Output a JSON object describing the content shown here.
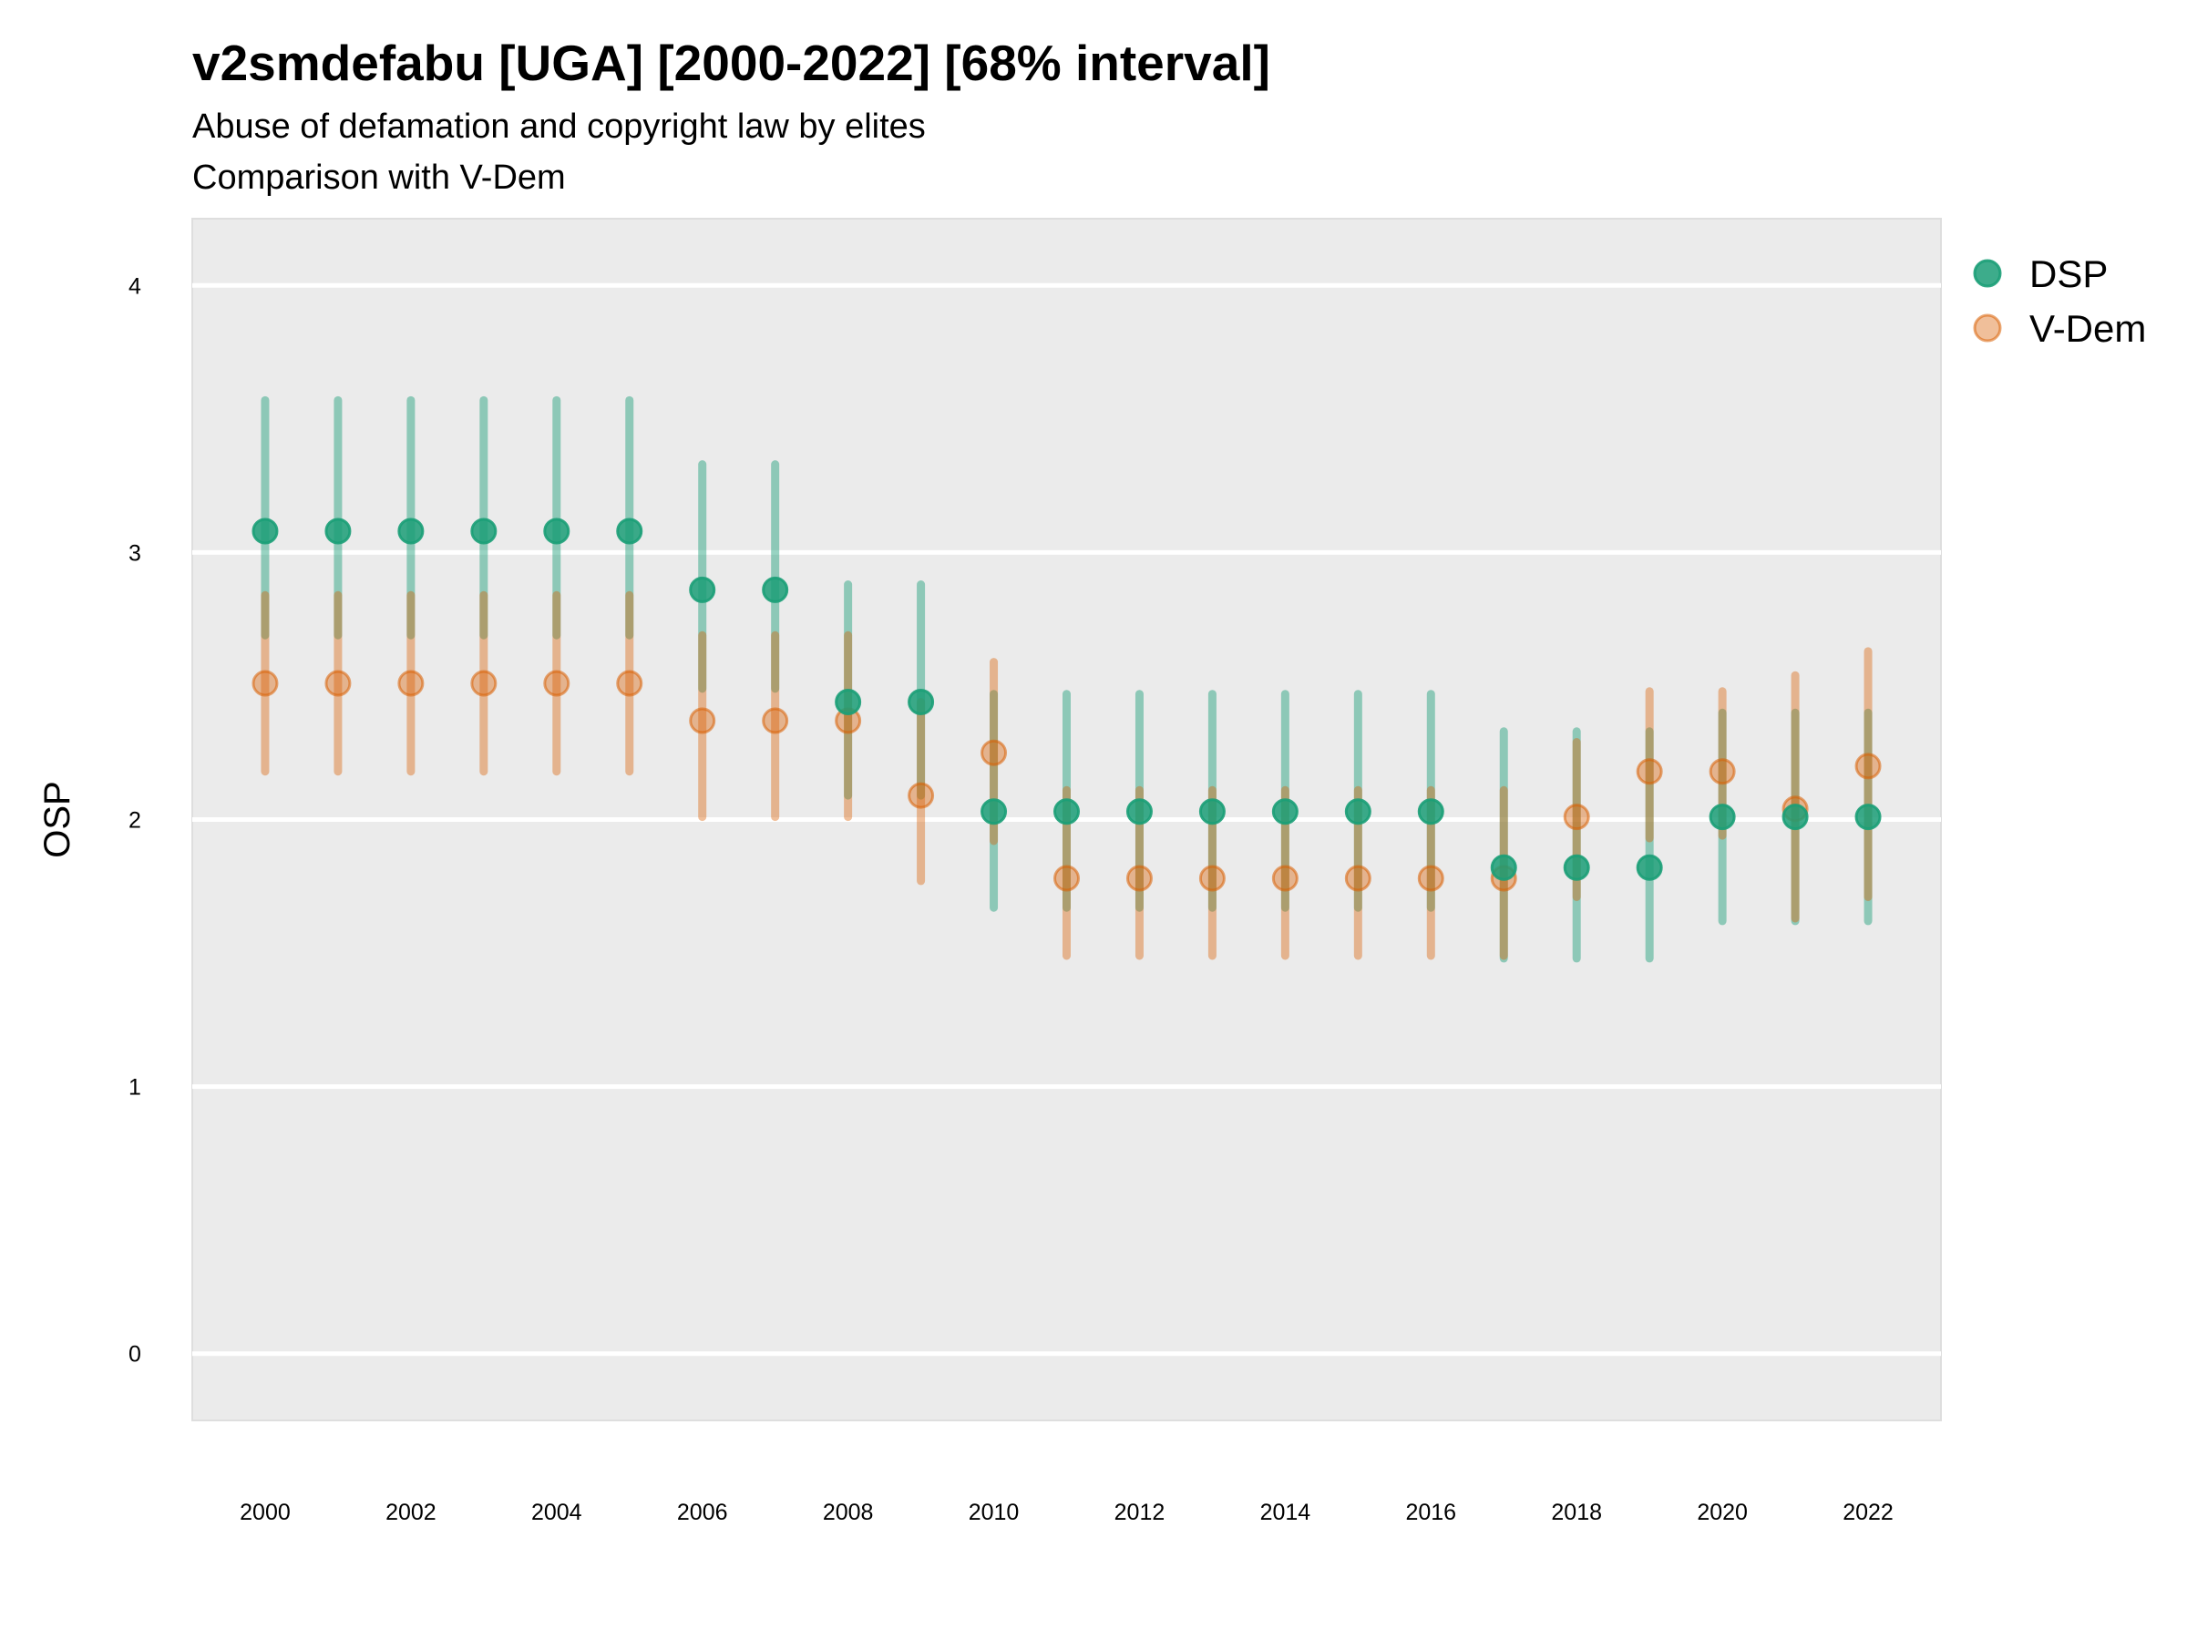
{
  "header": {
    "title": "v2smdefabu [UGA] [2000-2022] [68% interval]",
    "subtitle_line1": "Abuse of defamation and copyright law by elites",
    "subtitle_line2": "Comparison with V-Dem"
  },
  "colors": {
    "panel_background": "#ebebeb",
    "gridline": "#ffffff",
    "dsp": "#1b9e77",
    "vdem": "#d95f02"
  },
  "chart_data": {
    "type": "scatter",
    "subtype": "point-range (dot with 68% interval)",
    "title": "v2smdefabu [UGA] [2000-2022] [68% interval]",
    "subtitle": [
      "Abuse of defamation and copyright law by elites",
      "Comparison with V-Dem"
    ],
    "xlabel": "",
    "ylabel": "OSP",
    "xlim": [
      1999.0,
      2023.0
    ],
    "ylim": [
      -0.25,
      4.25
    ],
    "x_ticks": [
      2000,
      2002,
      2004,
      2006,
      2008,
      2010,
      2012,
      2014,
      2016,
      2018,
      2020,
      2022
    ],
    "y_ticks": [
      0,
      1,
      2,
      3,
      4
    ],
    "grid": "horizontal major gridlines only",
    "legend": {
      "position": "right-top",
      "entries": [
        "DSP",
        "V-Dem"
      ]
    },
    "x": [
      2000,
      2001,
      2002,
      2003,
      2004,
      2005,
      2006,
      2007,
      2008,
      2009,
      2010,
      2011,
      2012,
      2013,
      2014,
      2015,
      2016,
      2017,
      2018,
      2019,
      2020,
      2021,
      2022
    ],
    "series": [
      {
        "name": "DSP",
        "color": "#1b9e77",
        "values": [
          3.08,
          3.08,
          3.08,
          3.08,
          3.08,
          3.08,
          2.86,
          2.86,
          2.44,
          2.44,
          2.03,
          2.03,
          2.03,
          2.03,
          2.03,
          2.03,
          2.03,
          1.82,
          1.82,
          1.82,
          2.01,
          2.01,
          2.01
        ],
        "lower": [
          2.69,
          2.69,
          2.69,
          2.69,
          2.69,
          2.69,
          2.49,
          2.49,
          2.09,
          2.09,
          1.67,
          1.67,
          1.67,
          1.67,
          1.67,
          1.67,
          1.67,
          1.48,
          1.48,
          1.48,
          1.62,
          1.62,
          1.62
        ],
        "upper": [
          3.57,
          3.57,
          3.57,
          3.57,
          3.57,
          3.57,
          3.33,
          3.33,
          2.88,
          2.88,
          2.47,
          2.47,
          2.47,
          2.47,
          2.47,
          2.47,
          2.47,
          2.33,
          2.33,
          2.33,
          2.4,
          2.4,
          2.4
        ]
      },
      {
        "name": "V-Dem",
        "color": "#d95f02",
        "values": [
          2.51,
          2.51,
          2.51,
          2.51,
          2.51,
          2.51,
          2.37,
          2.37,
          2.37,
          2.09,
          2.25,
          1.78,
          1.78,
          1.78,
          1.78,
          1.78,
          1.78,
          1.78,
          2.01,
          2.18,
          2.18,
          2.04,
          2.2
        ],
        "lower": [
          2.18,
          2.18,
          2.18,
          2.18,
          2.18,
          2.18,
          2.01,
          2.01,
          2.01,
          1.77,
          1.92,
          1.49,
          1.49,
          1.49,
          1.49,
          1.49,
          1.49,
          1.49,
          1.71,
          1.93,
          1.94,
          1.63,
          1.71
        ],
        "upper": [
          2.84,
          2.84,
          2.84,
          2.84,
          2.84,
          2.84,
          2.69,
          2.69,
          2.69,
          2.44,
          2.59,
          2.11,
          2.11,
          2.11,
          2.11,
          2.11,
          2.11,
          2.11,
          2.29,
          2.48,
          2.48,
          2.54,
          2.63
        ]
      }
    ]
  }
}
